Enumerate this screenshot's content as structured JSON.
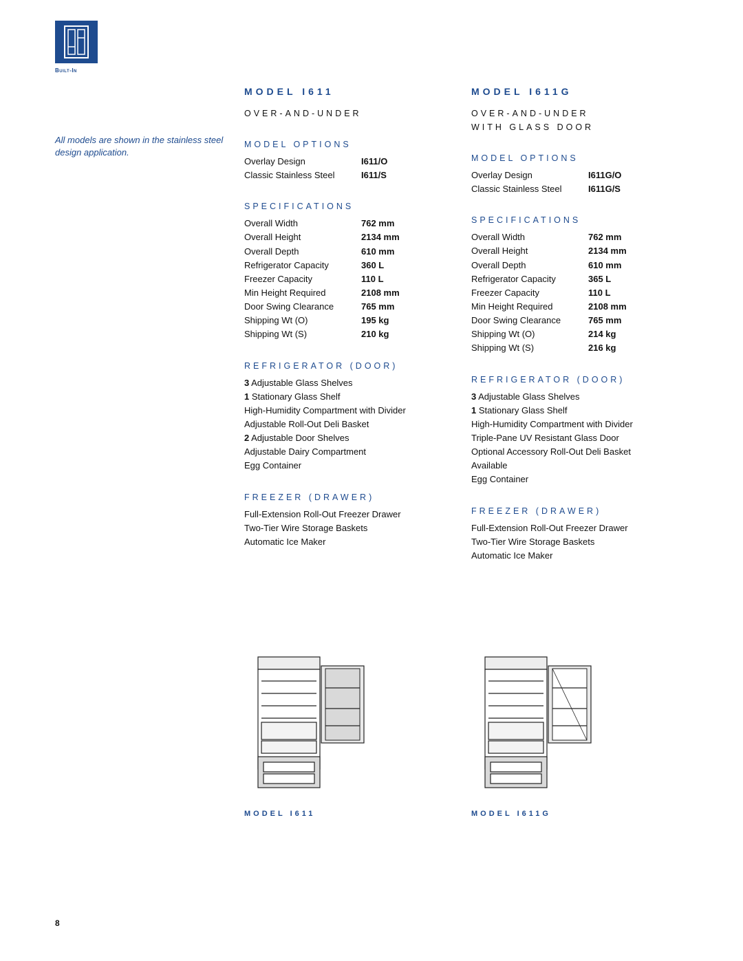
{
  "logo": {
    "label": "Built-In"
  },
  "sidenote": "All models are shown in the stainless steel design application.",
  "page_number": "8",
  "columns": [
    {
      "title": "MODEL I611",
      "subtitle": "OVER-AND-UNDER",
      "model_options_head": "MODEL OPTIONS",
      "model_options": [
        {
          "label": "Overlay Design",
          "value": "I611/O"
        },
        {
          "label": "Classic Stainless Steel",
          "value": "I611/S"
        }
      ],
      "specs_head": "SPECIFICATIONS",
      "specs": [
        {
          "label": "Overall Width",
          "value": "762 mm"
        },
        {
          "label": "Overall Height",
          "value": "2134 mm"
        },
        {
          "label": "Overall Depth",
          "value": "610 mm"
        },
        {
          "label": "Refrigerator Capacity",
          "value": "360 L"
        },
        {
          "label": "Freezer Capacity",
          "value": "110 L"
        },
        {
          "label": "Min Height Required",
          "value": "2108 mm"
        },
        {
          "label": "Door Swing Clearance",
          "value": "765 mm"
        },
        {
          "label": "Shipping Wt (O)",
          "value": "195 kg"
        },
        {
          "label": "Shipping Wt (S)",
          "value": "210 kg"
        }
      ],
      "fridge_head": "REFRIGERATOR (DOOR)",
      "fridge_items": [
        "<b>3</b> Adjustable Glass Shelves",
        "<b>1</b> Stationary Glass Shelf",
        "High-Humidity Compartment with Divider",
        "Adjustable Roll-Out Deli Basket",
        "<b>2</b> Adjustable Door Shelves",
        "Adjustable Dairy Compartment",
        "Egg Container"
      ],
      "freezer_head": "FREEZER (DRAWER)",
      "freezer_items": [
        "Full-Extension Roll-Out Freezer Drawer",
        "Two-Tier Wire Storage Baskets",
        "Automatic Ice Maker"
      ],
      "caption": "MODEL I611",
      "glass_door": false
    },
    {
      "title": "MODEL I611G",
      "subtitle": "OVER-AND-UNDER\nWITH GLASS DOOR",
      "model_options_head": "MODEL OPTIONS",
      "model_options": [
        {
          "label": "Overlay Design",
          "value": "I611G/O"
        },
        {
          "label": "Classic Stainless Steel",
          "value": "I611G/S"
        }
      ],
      "specs_head": "SPECIFICATIONS",
      "specs": [
        {
          "label": "Overall Width",
          "value": "762 mm"
        },
        {
          "label": "Overall Height",
          "value": "2134 mm"
        },
        {
          "label": "Overall Depth",
          "value": "610 mm"
        },
        {
          "label": "Refrigerator Capacity",
          "value": "365 L"
        },
        {
          "label": "Freezer Capacity",
          "value": "110 L"
        },
        {
          "label": "Min Height Required",
          "value": "2108 mm"
        },
        {
          "label": "Door Swing Clearance",
          "value": "765 mm"
        },
        {
          "label": "Shipping Wt (O)",
          "value": "214 kg"
        },
        {
          "label": "Shipping Wt (S)",
          "value": "216 kg"
        }
      ],
      "fridge_head": "REFRIGERATOR (DOOR)",
      "fridge_items": [
        "<b>3</b> Adjustable Glass Shelves",
        "<b>1</b> Stationary Glass Shelf",
        "High-Humidity Compartment with Divider",
        "Triple-Pane UV Resistant Glass Door",
        "Optional Accessory Roll-Out Deli Basket Available",
        "Egg Container"
      ],
      "freezer_head": "FREEZER (DRAWER)",
      "freezer_items": [
        "Full-Extension Roll-Out Freezer Drawer",
        "Two-Tier Wire Storage Baskets",
        "Automatic Ice Maker"
      ],
      "caption": "MODEL I611G",
      "glass_door": true
    }
  ],
  "style": {
    "brand_color": "#1e4b8f",
    "text_color": "#111111",
    "background": "#ffffff"
  }
}
